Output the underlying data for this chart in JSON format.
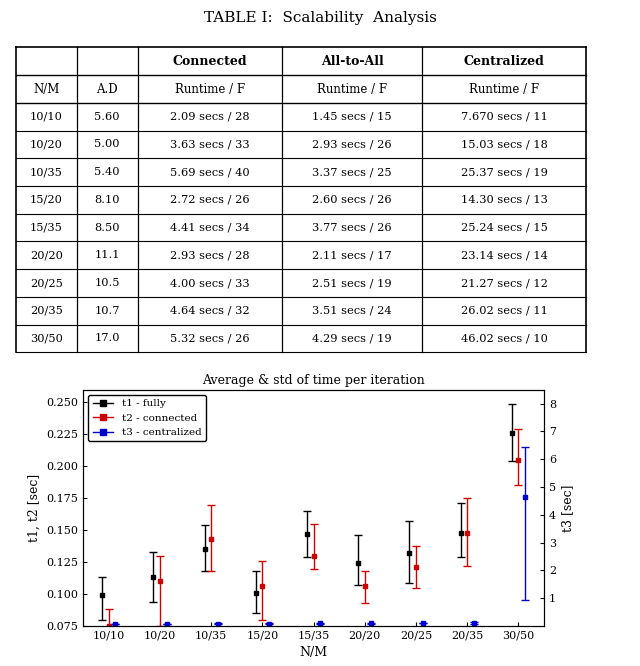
{
  "title": "TABLE I:  Scalability  Analysis",
  "table_col_headers_row1": [
    "",
    "",
    "Connected",
    "All-to-All",
    "Centralized"
  ],
  "table_col_headers_row2": [
    "N/M",
    "A.D",
    "Runtime / F",
    "Runtime / F",
    "Runtime / F"
  ],
  "table_data": [
    [
      "10/10",
      "5.60",
      "2.09 secs / 28",
      "1.45 secs / 15",
      "7.670 secs / 11"
    ],
    [
      "10/20",
      "5.00",
      "3.63 secs / 33",
      "2.93 secs / 26",
      "15.03 secs / 18"
    ],
    [
      "10/35",
      "5.40",
      "5.69 secs / 40",
      "3.37 secs / 25",
      "25.37 secs / 19"
    ],
    [
      "15/20",
      "8.10",
      "2.72 secs / 26",
      "2.60 secs / 26",
      "14.30 secs / 13"
    ],
    [
      "15/35",
      "8.50",
      "4.41 secs / 34",
      "3.77 secs / 26",
      "25.24 secs / 15"
    ],
    [
      "20/20",
      "11.1",
      "2.93 secs / 28",
      "2.11 secs / 17",
      "23.14 secs / 14"
    ],
    [
      "20/25",
      "10.5",
      "4.00 secs / 33",
      "2.51 secs / 19",
      "21.27 secs / 12"
    ],
    [
      "20/35",
      "10.7",
      "4.64 secs / 32",
      "3.51 secs / 24",
      "26.02 secs / 11"
    ],
    [
      "30/50",
      "17.0",
      "5.32 secs / 26",
      "4.29 secs / 19",
      "46.02 secs / 10"
    ]
  ],
  "chart_title": "Average & std of time per iteration",
  "chart_xlabel": "N/M",
  "chart_ylabel_left": "t1, t2 [sec]",
  "chart_ylabel_right": "t3 [sec]",
  "x_labels": [
    "10/10",
    "10/20",
    "10/35",
    "15/20",
    "15/35",
    "20/20",
    "20/25",
    "20/35",
    "30/50"
  ],
  "t1_mean": [
    0.099,
    0.113,
    0.135,
    0.101,
    0.147,
    0.124,
    0.132,
    0.148,
    0.226
  ],
  "t1_lower": [
    0.019,
    0.019,
    0.017,
    0.016,
    0.018,
    0.017,
    0.023,
    0.019,
    0.022
  ],
  "t1_upper": [
    0.014,
    0.02,
    0.019,
    0.017,
    0.018,
    0.022,
    0.025,
    0.023,
    0.023
  ],
  "t2_mean": [
    0.075,
    0.11,
    0.143,
    0.106,
    0.13,
    0.106,
    0.121,
    0.148,
    0.205
  ],
  "t2_lower": [
    0.007,
    0.035,
    0.025,
    0.026,
    0.01,
    0.013,
    0.016,
    0.026,
    0.02
  ],
  "t2_upper": [
    0.013,
    0.02,
    0.027,
    0.02,
    0.025,
    0.012,
    0.017,
    0.027,
    0.024
  ],
  "t3_mean": [
    0.068,
    0.072,
    0.087,
    0.081,
    0.094,
    0.094,
    0.113,
    0.11,
    4.65
  ],
  "t3_lower": [
    0.006,
    0.007,
    0.01,
    0.006,
    0.012,
    0.011,
    0.015,
    0.032,
    3.7
  ],
  "t3_upper": [
    0.007,
    0.008,
    0.016,
    0.012,
    0.028,
    0.013,
    0.005,
    0.04,
    1.8
  ],
  "t1_color": "#000000",
  "t2_color": "#cc0000",
  "t3_color": "#0000cc",
  "ylim_left": [
    0.075,
    0.26
  ],
  "ylim_right": [
    0.0,
    8.5
  ],
  "yticks_left": [
    0.075,
    0.1,
    0.125,
    0.15,
    0.175,
    0.2,
    0.225,
    0.25
  ],
  "yticks_right": [
    1,
    2,
    3,
    4,
    5,
    6,
    7,
    8
  ],
  "legend": [
    "t1 - fully",
    "t2 - connected",
    "t3 - centralized"
  ]
}
